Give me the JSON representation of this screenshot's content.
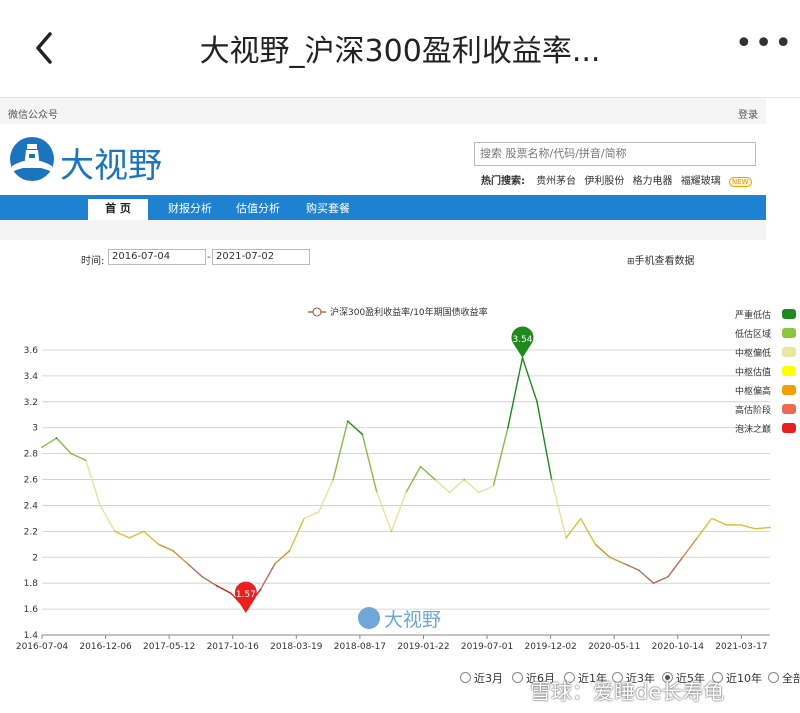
{
  "topbar": {
    "title": "大视野_沪深300盈利收益率...",
    "back_icon": "back-arrow-icon",
    "more_icon": "more-dots-icon",
    "more_label": "•••"
  },
  "subhead": {
    "left": "微信公众号",
    "right": "登录"
  },
  "brand": {
    "name": "大视野",
    "logo_icon": "lighthouse-logo-icon",
    "color": "#1c74bf"
  },
  "search": {
    "placeholder": "搜索 股票名称/代码/拼音/简称",
    "hot_label": "热门搜索:",
    "hot_items": [
      "贵州茅台",
      "伊利股份",
      "格力电器",
      "福耀玻璃"
    ],
    "new_badge": "NEW"
  },
  "nav": {
    "tabs": [
      "首 页",
      "财报分析",
      "估值分析",
      "购买套餐"
    ],
    "active": 0,
    "color": "#1e82d0"
  },
  "daterange": {
    "label": "时间:",
    "start": "2016-07-04",
    "end": "2021-07-02",
    "separator": "-",
    "phone_label": "手机查看数据"
  },
  "chart_data": {
    "type": "line",
    "series_name": "沪深300盈利收益率/10年期国债收益率",
    "ylim": [
      1.4,
      3.6
    ],
    "yticks": [
      "3.6",
      "3.4",
      "3.2",
      "3",
      "2.8",
      "2.6",
      "2.4",
      "2.2",
      "2",
      "1.8",
      "1.6",
      "1.4"
    ],
    "xticks": [
      "2016-07-04",
      "2016-12-06",
      "2017-05-12",
      "2017-10-16",
      "2018-03-19",
      "2018-08-17",
      "2019-01-22",
      "2019-07-01",
      "2019-12-02",
      "2020-05-11",
      "2020-10-14",
      "2021-03-17"
    ],
    "x": [
      0.0,
      0.02,
      0.04,
      0.06,
      0.08,
      0.1,
      0.12,
      0.14,
      0.16,
      0.18,
      0.2,
      0.22,
      0.24,
      0.26,
      0.28,
      0.3,
      0.32,
      0.34,
      0.36,
      0.38,
      0.4,
      0.42,
      0.44,
      0.46,
      0.48,
      0.5,
      0.52,
      0.54,
      0.56,
      0.58,
      0.6,
      0.62,
      0.64,
      0.66,
      0.68,
      0.7,
      0.72,
      0.74,
      0.76,
      0.78,
      0.8,
      0.82,
      0.84,
      0.86,
      0.88,
      0.9,
      0.92,
      0.94,
      0.96,
      0.98,
      1.0
    ],
    "values": [
      2.85,
      2.92,
      2.8,
      2.75,
      2.4,
      2.2,
      2.15,
      2.2,
      2.1,
      2.05,
      1.95,
      1.85,
      1.78,
      1.72,
      1.6,
      1.75,
      1.95,
      2.05,
      2.3,
      2.35,
      2.6,
      3.05,
      2.95,
      2.5,
      2.2,
      2.5,
      2.7,
      2.6,
      2.5,
      2.6,
      2.5,
      2.55,
      3.0,
      3.54,
      3.2,
      2.6,
      2.15,
      2.3,
      2.1,
      2.0,
      1.95,
      1.9,
      1.8,
      1.85,
      2.0,
      2.15,
      2.3,
      2.25,
      2.25,
      2.22,
      2.23
    ],
    "markers": [
      {
        "label": "3.54",
        "x": 0.66,
        "y": 3.54,
        "color": "#1e8a1e"
      },
      {
        "label": "1.57",
        "x": 0.28,
        "y": 1.57,
        "color": "#e82020"
      }
    ],
    "watermark": "大视野",
    "legend": [
      {
        "label": "严重低估",
        "color": "#1e8a1e"
      },
      {
        "label": "低估区域",
        "color": "#8cc63f"
      },
      {
        "label": "中枢偏低",
        "color": "#e8e8a0"
      },
      {
        "label": "中枢估值",
        "color": "#ffff00"
      },
      {
        "label": "中枢偏高",
        "color": "#f0a000"
      },
      {
        "label": "高估阶段",
        "color": "#ee6a50"
      },
      {
        "label": "泡沫之巅",
        "color": "#e82020"
      }
    ],
    "legend_position": "right",
    "grid": true
  },
  "ranges": {
    "items": [
      "近3月",
      "近6月",
      "近1年",
      "近3年",
      "近5年",
      "近10年",
      "全部"
    ],
    "selected": 4
  },
  "watermark_text": "雪球：爱睡de长寿龟"
}
